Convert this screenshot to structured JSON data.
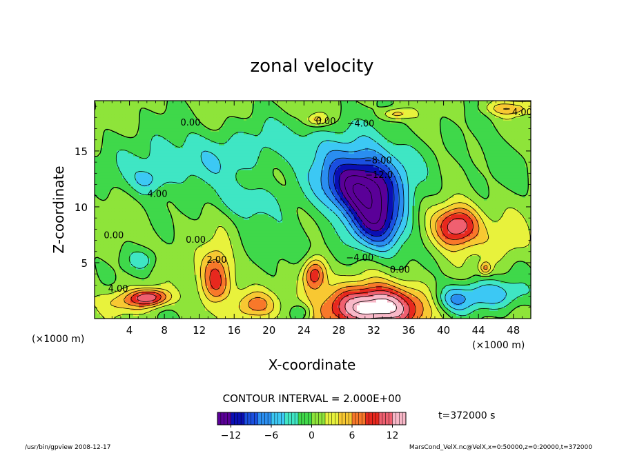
{
  "chart_data": {
    "type": "heatmap",
    "title": "zonal velocity",
    "xlabel": "X-coordinate",
    "ylabel": "Z-coordinate",
    "x_unit": "(×1000 m)",
    "y_unit": "(×1000 m)",
    "xlim": [
      0,
      50
    ],
    "ylim": [
      0,
      19.5
    ],
    "x_ticks": [
      "4",
      "8",
      "12",
      "16",
      "20",
      "24",
      "28",
      "32",
      "36",
      "40",
      "44",
      "48"
    ],
    "x_tick_values": [
      4,
      8,
      12,
      16,
      20,
      24,
      28,
      32,
      36,
      40,
      44,
      48
    ],
    "y_ticks": [
      "5",
      "10",
      "15"
    ],
    "y_tick_values": [
      5,
      10,
      15
    ],
    "contour_interval_text": "CONTOUR INTERVAL = 2.000E+00",
    "contour_interval": 2.0,
    "time_text": "t=372000 s",
    "colorbar": {
      "min": -14,
      "max": 14,
      "tick_labels": [
        "−12",
        "−6",
        "0",
        "6",
        "12"
      ],
      "tick_values": [
        -12,
        -6,
        0,
        6,
        12
      ],
      "colors": [
        "#5a0098",
        "#0a0fb4",
        "#1a4fe0",
        "#2a8ef0",
        "#3cc8f4",
        "#3fe6c4",
        "#3fd84a",
        "#8ee43a",
        "#e8f23c",
        "#f8c832",
        "#f8782a",
        "#e8281e",
        "#f06070",
        "#f8b8c8"
      ]
    },
    "contour_labels": [
      {
        "text": "0.00",
        "x": 11,
        "z": 17.6
      },
      {
        "text": "0.00",
        "x": 26.5,
        "z": 17.7
      },
      {
        "text": "−4.00",
        "x": 30.5,
        "z": 17.5
      },
      {
        "text": "4.00",
        "x": 49,
        "z": 18.5
      },
      {
        "text": "−8.00",
        "x": 32.5,
        "z": 14.2
      },
      {
        "text": "−12.0",
        "x": 32.6,
        "z": 12.9
      },
      {
        "text": "4.00",
        "x": 7.2,
        "z": 11.2
      },
      {
        "text": "0.00",
        "x": 2.2,
        "z": 7.5
      },
      {
        "text": "0.00",
        "x": 11.6,
        "z": 7.1
      },
      {
        "text": "2.00",
        "x": 14,
        "z": 5.3
      },
      {
        "text": "−4.00",
        "x": 30.4,
        "z": 5.5
      },
      {
        "text": "0.00",
        "x": 35,
        "z": 4.4
      },
      {
        "text": "4.00",
        "x": 2.7,
        "z": 2.7
      }
    ],
    "features": [
      {
        "x": 30.5,
        "z": 11.8,
        "value": -14,
        "rx": 4.5,
        "rz": 2.6
      },
      {
        "x": 32.5,
        "z": 8.5,
        "value": -11,
        "rx": 3.3,
        "rz": 2.6
      },
      {
        "x": 30.5,
        "z": 14.5,
        "value": -4,
        "rx": 6,
        "rz": 3
      },
      {
        "x": 32,
        "z": 1,
        "value": 16,
        "rx": 5.5,
        "rz": 2
      },
      {
        "x": 41.6,
        "z": 8.3,
        "value": 12,
        "rx": 2.6,
        "rz": 1.9
      },
      {
        "x": 14,
        "z": 3.8,
        "value": 9,
        "rx": 1.9,
        "rz": 2.8
      },
      {
        "x": 25.2,
        "z": 4.0,
        "value": 10,
        "rx": 1.4,
        "rz": 1.5
      },
      {
        "x": 6.4,
        "z": 1.9,
        "value": 11,
        "rx": 2.2,
        "rz": 0.8
      },
      {
        "x": 18.5,
        "z": 1.2,
        "value": 7,
        "rx": 2.5,
        "rz": 1.3
      },
      {
        "x": 45.2,
        "z": 2.2,
        "value": -6,
        "rx": 4.5,
        "rz": 1.4
      },
      {
        "x": 41,
        "z": 1.6,
        "value": -5,
        "rx": 2.2,
        "rz": 1.2
      },
      {
        "x": 23.8,
        "z": 0.6,
        "value": -4,
        "rx": 1.2,
        "rz": 0.8
      },
      {
        "x": 14.8,
        "z": 1.2,
        "value": -3,
        "rx": 1.6,
        "rz": 1.1
      },
      {
        "x": 11,
        "z": 14.2,
        "value": -4,
        "rx": 9,
        "rz": 2.8
      },
      {
        "x": 17,
        "z": 10.5,
        "value": -3.5,
        "rx": 3.5,
        "rz": 1.6
      },
      {
        "x": 6.2,
        "z": 12.4,
        "value": -3.5,
        "rx": 2,
        "rz": 1.3
      },
      {
        "x": 5.5,
        "z": 5.3,
        "value": -3.5,
        "rx": 1.8,
        "rz": 1
      },
      {
        "x": 21,
        "z": 6.5,
        "value": -2,
        "rx": 5,
        "rz": 3
      },
      {
        "x": 22,
        "z": 16,
        "value": -2.5,
        "rx": 6,
        "rz": 2
      },
      {
        "x": 45,
        "z": 14,
        "value": -1.5,
        "rx": 4,
        "rz": 3
      },
      {
        "x": 25.5,
        "z": 17.8,
        "value": 5,
        "rx": 1.2,
        "rz": 0.6
      },
      {
        "x": 34.5,
        "z": 18.3,
        "value": 5,
        "rx": 1.5,
        "rz": 0.5
      },
      {
        "x": 47.5,
        "z": 18.8,
        "value": 5,
        "rx": 2.5,
        "rz": 0.6
      },
      {
        "x": 44.8,
        "z": 4.5,
        "value": 6,
        "rx": 0.7,
        "rz": 0.6
      },
      {
        "x": 3,
        "z": 1.5,
        "value": 4,
        "rx": 2.5,
        "rz": 1
      },
      {
        "x": 47,
        "z": 7,
        "value": 3,
        "rx": 2.5,
        "rz": 2
      }
    ]
  },
  "footer": {
    "left": "/usr/bin/gpview   2008-12-17",
    "right": "MarsCond_VelX.nc@VelX,x=0:50000,z=0:20000,t=372000"
  }
}
